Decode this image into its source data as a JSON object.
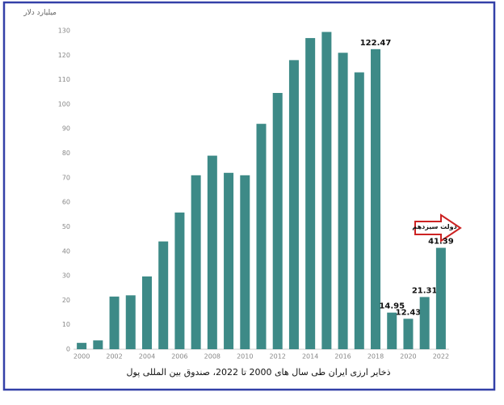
{
  "chart_data": {
    "type": "bar",
    "title": "ذخایر ارزی ایران طی سال های 2000 تا 2022، صندوق بین المللی پول",
    "y_label": "میلیارد دلار",
    "annotation": "دولت سیزدهم",
    "categories": [
      "2000",
      null,
      "2002",
      null,
      "2004",
      null,
      "2006",
      null,
      "2008",
      null,
      "2010",
      null,
      "2012",
      null,
      "2014",
      null,
      "2016",
      null,
      "2018",
      null,
      "2020",
      null,
      "2022"
    ],
    "values": [
      2.6,
      3.6,
      21.5,
      22,
      29.7,
      44,
      55.8,
      71,
      79,
      72,
      71,
      92,
      104.6,
      118,
      127,
      129.5,
      121,
      113,
      122.47,
      14.95,
      12.43,
      21.31,
      41.39
    ],
    "value_labels": [
      null,
      null,
      null,
      null,
      null,
      null,
      null,
      null,
      null,
      null,
      null,
      null,
      null,
      null,
      null,
      null,
      null,
      null,
      "122.47",
      "14.95",
      "12.43",
      "21.31",
      "41.39"
    ],
    "color": "#3d8a87",
    "ylim": [
      0,
      130
    ],
    "yticks": [
      0,
      10,
      20,
      30,
      40,
      50,
      60,
      70,
      80,
      90,
      100,
      110,
      120,
      130
    ],
    "grid": false
  }
}
